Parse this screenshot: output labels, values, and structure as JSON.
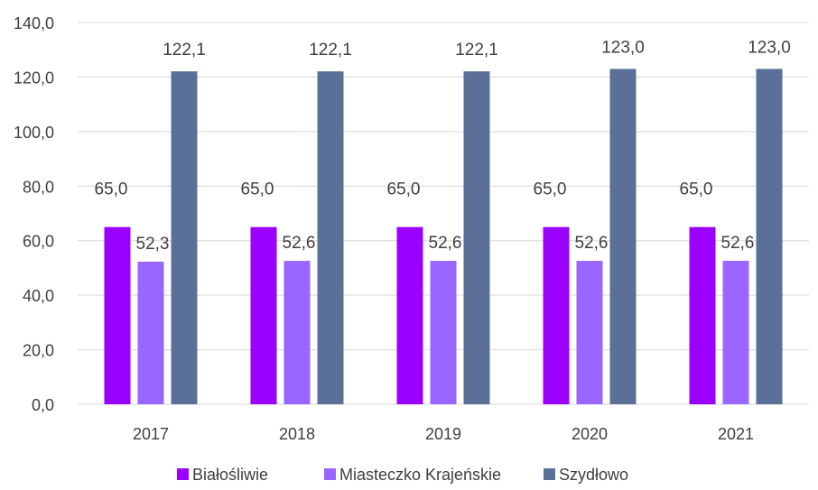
{
  "chart_data": {
    "type": "bar",
    "categories": [
      "2017",
      "2018",
      "2019",
      "2020",
      "2021"
    ],
    "series": [
      {
        "name": "Białośliwie",
        "values": [
          65.0,
          65.0,
          65.0,
          65.0,
          65.0
        ],
        "color": "#9900FF",
        "labels": [
          "65,0",
          "65,0",
          "65,0",
          "65,0",
          "65,0"
        ]
      },
      {
        "name": "Miasteczko Krajeńskie",
        "values": [
          52.3,
          52.6,
          52.6,
          52.6,
          52.6
        ],
        "color": "#9966FF",
        "labels": [
          "52,3",
          "52,6",
          "52,6",
          "52,6",
          "52,6"
        ]
      },
      {
        "name": "Szydłowo",
        "values": [
          122.1,
          122.1,
          122.1,
          123.0,
          123.0
        ],
        "color": "#5B7098",
        "labels": [
          "122,1",
          "122,1",
          "122,1",
          "123,0",
          "123,0"
        ]
      }
    ],
    "ylim": [
      0,
      140
    ],
    "yticks": [
      0,
      20,
      40,
      60,
      80,
      100,
      120,
      140
    ],
    "ytick_labels": [
      "0,0",
      "20,0",
      "40,0",
      "60,0",
      "80,0",
      "100,0",
      "120,0",
      "140,0"
    ],
    "grid": true,
    "grid_color": "#D9D9D9",
    "legend_position": "bottom"
  }
}
